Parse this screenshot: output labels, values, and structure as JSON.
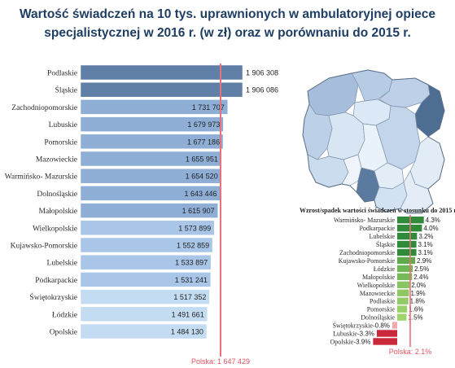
{
  "title_line1": "Wartość świadczeń na 10 tys. uprawnionych w ambulatoryjnej opiece",
  "title_line2": "specjalistycznej w 2016 r. (w zł) oraz w porównaniu do 2015 r.",
  "chart_data": [
    {
      "type": "bar",
      "orientation": "horizontal",
      "categories": [
        "Podlaskie",
        "Śląskie",
        "Zachodniopomorskie",
        "Lubuskie",
        "Pomorskie",
        "Mazowieckie",
        "Warmińsko- Mazurskie",
        "Dolnośląskie",
        "Małopolskie",
        "Wielkopolskie",
        "Kujawsko-Pomorskie",
        "Lubelskie",
        "Podkarpackie",
        "Świętokrzyskie",
        "Łódzkie",
        "Opolskie"
      ],
      "values": [
        1906308,
        1906086,
        1731707,
        1679973,
        1677186,
        1655951,
        1654520,
        1643446,
        1615907,
        1573899,
        1552859,
        1533897,
        1531241,
        1517352,
        1491661,
        1484130
      ],
      "value_labels": [
        "1 906 308",
        "1 906 086",
        "1 731 707",
        "1 679 973",
        "1 677 186",
        "1 655 951",
        "1 654 520",
        "1 643 446",
        "1 615 907",
        "1 573 899",
        "1 552 859",
        "1 533 897",
        "1 531 241",
        "1 517 352",
        "1 491 661",
        "1 484 130"
      ],
      "reference_line": {
        "value": 1647429,
        "label": "Polska: 1 647 429",
        "color": "#e8707a"
      },
      "colors": {
        "top": "#5f7fa6",
        "upper": "#8eaed6",
        "mid": "#a9c6e8",
        "lower": "#c4dcf2"
      },
      "xlim": [
        0,
        1906308
      ]
    },
    {
      "type": "bar",
      "orientation": "horizontal",
      "title": "Wzrost/spadek wartości świadczeń w stosunku do 2015 r.",
      "categories": [
        "Warmińsko- Mazurskie",
        "Podkarpackie",
        "Lubelskie",
        "Śląskie",
        "Zachodniopomorskie",
        "Kujawsko-Pomorskie",
        "Łódzkie",
        "Małopolskie",
        "Wielkopolskie",
        "Mazowieckie",
        "Podlaskie",
        "Pomorskie",
        "Dolnośląskie",
        "Świętokrzyskie",
        "Lubuskie",
        "Opolskie"
      ],
      "values": [
        4.3,
        4.0,
        3.2,
        3.1,
        3.1,
        2.9,
        2.5,
        2.4,
        2.0,
        1.9,
        1.8,
        1.6,
        1.5,
        -0.8,
        -3.3,
        -3.9
      ],
      "value_labels": [
        "4.3%",
        "4.0%",
        "3.2%",
        "3.1%",
        "3.1%",
        "2.9%",
        "2.5%",
        "2.4%",
        "2.0%",
        "1.9%",
        "1.8%",
        "1.6%",
        "1.5%",
        "-0.8%",
        "-3.3%",
        "-3.9%"
      ],
      "reference_line": {
        "value": 2.1,
        "label": "Polska: 2.1%",
        "color": "#e8707a"
      },
      "colors": {
        "positive_dark": "#2f8a3a",
        "positive_light": "#9fd36e",
        "negative_light": "#f3a7ae",
        "negative_dark": "#c8283a"
      },
      "xlim": [
        -3.9,
        4.3
      ]
    }
  ],
  "map": {
    "type": "choropleth",
    "regions": [
      "zachodniopomorskie",
      "pomorskie",
      "warmińsko-mazurskie",
      "podlaskie",
      "lubuskie",
      "wielkopolskie",
      "kujawsko-pomorskie",
      "mazowieckie",
      "dolnośląskie",
      "opolskie",
      "śląskie",
      "łódzkie",
      "świętokrzyskie",
      "lubelskie",
      "małopolskie",
      "podkarpackie"
    ],
    "colors": {
      "zachodniopomorskie": "#a6bedb",
      "pomorskie": "#b6cbe4",
      "warmińsko-mazurskie": "#bed0e8",
      "podlaskie": "#4e6d92",
      "lubuskie": "#bcd0e8",
      "wielkopolskie": "#d8e6f4",
      "kujawsko-pomorskie": "#dbe8f5",
      "mazowieckie": "#c2d5eb",
      "dolnośląskie": "#cbdcef",
      "opolskie": "#eef4fa",
      "śląskie": "#5b7aa0",
      "łódzkie": "#e9f1f9",
      "świętokrzyskie": "#e3edf7",
      "lubelskie": "#e2ecf6",
      "małopolskie": "#d3e2f2",
      "podkarpackie": "#e4edf7"
    }
  }
}
